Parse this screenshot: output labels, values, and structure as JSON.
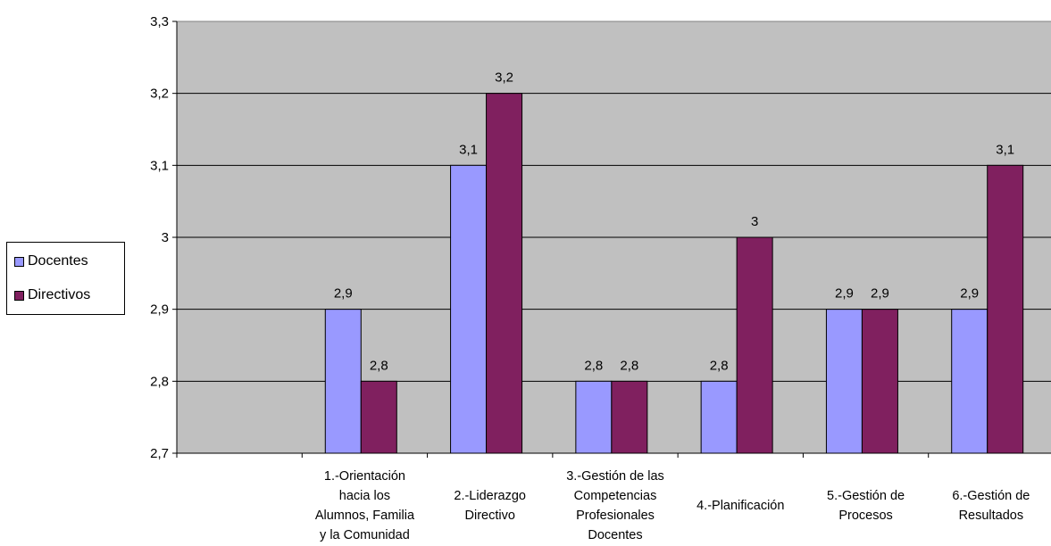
{
  "chart_data": {
    "type": "bar",
    "categories": [
      "",
      "1.-Orientación hacia los Alumnos, Familia y la Comunidad",
      "2.-Liderazgo Directivo",
      "3.-Gestión de las Competencias Profesionales Docentes",
      "4.-Planificación",
      "5.-Gestión de Procesos",
      "6.-Gestión de Resultados"
    ],
    "category_lines": [
      [],
      [
        "1.-Orientación",
        "hacia los",
        "Alumnos, Familia",
        "y la Comunidad"
      ],
      [
        "2.-Liderazgo",
        "Directivo"
      ],
      [
        "3.-Gestión de las",
        "Competencias",
        "Profesionales",
        "Docentes"
      ],
      [
        "4.-Planificación"
      ],
      [
        "5.-Gestión de",
        "Procesos"
      ],
      [
        "6.-Gestión de",
        "Resultados"
      ]
    ],
    "series": [
      {
        "name": "Docentes",
        "color": "#9999ff",
        "values": [
          null,
          2.9,
          3.1,
          2.8,
          2.8,
          2.9,
          2.9
        ],
        "labels": [
          "",
          "2,9",
          "3,1",
          "2,8",
          "2,8",
          "2,9",
          "2,9"
        ]
      },
      {
        "name": "Directivos",
        "color": "#80205f",
        "values": [
          null,
          2.8,
          3.2,
          2.8,
          3.0,
          2.9,
          3.1
        ],
        "labels": [
          "",
          "2,8",
          "3,2",
          "2,8",
          "3",
          "2,9",
          "3,1"
        ]
      }
    ],
    "yticks": [
      "2,7",
      "2,8",
      "2,9",
      "3",
      "3,1",
      "3,2",
      "3,3"
    ],
    "ylim": [
      2.7,
      3.3
    ],
    "plot_background": "#c0c0c0",
    "grid": true,
    "legend_position": "left"
  }
}
